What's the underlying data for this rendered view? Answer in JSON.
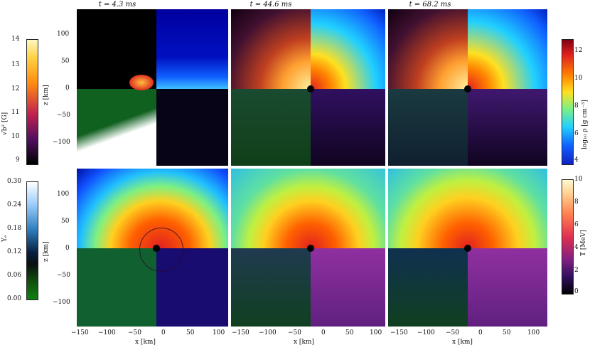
{
  "chart_data": {
    "type": "heatmap",
    "titles": [
      "t = 4.3 ms",
      "t = 44.6 ms",
      "t = 68.2 ms"
    ],
    "xlabel": "x [km]",
    "ylabel": "z [km]",
    "xticks": [
      "−150",
      "−100",
      "−50",
      "0",
      "50",
      "100"
    ],
    "yticks": [
      "100",
      "50",
      "0",
      "−50",
      "−100"
    ],
    "xlim": [
      -160,
      120
    ],
    "ylim": [
      -145,
      145
    ],
    "colorbars": [
      {
        "label": "√b² [G]",
        "ticks": [
          "14",
          "13",
          "12",
          "11",
          "10",
          "9"
        ],
        "range": [
          9,
          14
        ]
      },
      {
        "label": "log₁₀ ρ [g cm⁻³]",
        "ticks": [
          "12",
          "10",
          "8",
          "6",
          "4"
        ],
        "range": [
          4,
          13
        ]
      },
      {
        "label": "Yₑ",
        "ticks": [
          "0.30",
          "0.24",
          "0.18",
          "0.12",
          "0.06",
          "0.00"
        ],
        "range": [
          0.0,
          0.3
        ]
      },
      {
        "label": "T [MeV]",
        "ticks": [
          "10",
          "8",
          "6",
          "4",
          "2",
          "0"
        ],
        "range": [
          0,
          10
        ]
      }
    ]
  }
}
